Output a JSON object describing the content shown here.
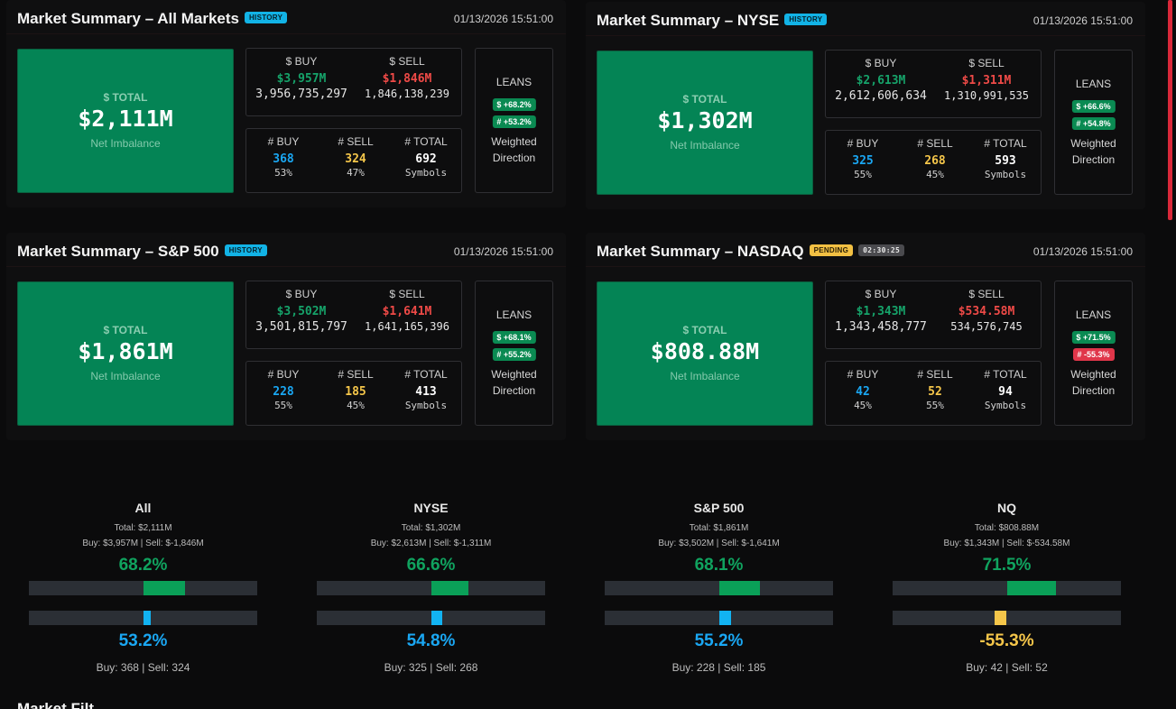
{
  "panels": [
    {
      "title": "Market Summary – All Markets",
      "badge": "HISTORY",
      "timer": "",
      "timestamp": "01/13/2026 15:51:00",
      "total_label": "$ TOTAL",
      "total_value": "$2,111M",
      "total_sub": "Net Imbalance",
      "buy_label": "$ BUY",
      "sell_label": "$ SELL",
      "buy_value": "$3,957M",
      "sell_value": "$1,846M",
      "buy_raw": "3,956,735,297",
      "sell_raw": "1,846,138,239",
      "nbuy_label": "# BUY",
      "nsell_label": "# SELL",
      "ntotal_label": "# TOTAL",
      "nbuy": "368",
      "nsell": "324",
      "ntotal": "692",
      "nbuy_pct": "53%",
      "nsell_pct": "47%",
      "ntotal_sub": "Symbols",
      "leans_title": "LEANS",
      "lean_dollar": "$ +68.2%",
      "lean_count": "# +53.2%",
      "lean_count_sign": "pos",
      "leans_foot1": "Weighted",
      "leans_foot2": "Direction"
    },
    {
      "title": "Market Summary – NYSE",
      "badge": "HISTORY",
      "timer": "",
      "timestamp": "01/13/2026 15:51:00",
      "total_label": "$ TOTAL",
      "total_value": "$1,302M",
      "total_sub": "Net Imbalance",
      "buy_label": "$ BUY",
      "sell_label": "$ SELL",
      "buy_value": "$2,613M",
      "sell_value": "$1,311M",
      "buy_raw": "2,612,606,634",
      "sell_raw": "1,310,991,535",
      "nbuy_label": "# BUY",
      "nsell_label": "# SELL",
      "ntotal_label": "# TOTAL",
      "nbuy": "325",
      "nsell": "268",
      "ntotal": "593",
      "nbuy_pct": "55%",
      "nsell_pct": "45%",
      "ntotal_sub": "Symbols",
      "leans_title": "LEANS",
      "lean_dollar": "$ +66.6%",
      "lean_count": "# +54.8%",
      "lean_count_sign": "pos",
      "leans_foot1": "Weighted",
      "leans_foot2": "Direction"
    },
    {
      "title": "Market Summary – S&P 500",
      "badge": "HISTORY",
      "timer": "",
      "timestamp": "01/13/2026 15:51:00",
      "total_label": "$ TOTAL",
      "total_value": "$1,861M",
      "total_sub": "Net Imbalance",
      "buy_label": "$ BUY",
      "sell_label": "$ SELL",
      "buy_value": "$3,502M",
      "sell_value": "$1,641M",
      "buy_raw": "3,501,815,797",
      "sell_raw": "1,641,165,396",
      "nbuy_label": "# BUY",
      "nsell_label": "# SELL",
      "ntotal_label": "# TOTAL",
      "nbuy": "228",
      "nsell": "185",
      "ntotal": "413",
      "nbuy_pct": "55%",
      "nsell_pct": "45%",
      "ntotal_sub": "Symbols",
      "leans_title": "LEANS",
      "lean_dollar": "$ +68.1%",
      "lean_count": "# +55.2%",
      "lean_count_sign": "pos",
      "leans_foot1": "Weighted",
      "leans_foot2": "Direction"
    },
    {
      "title": "Market Summary – NASDAQ",
      "badge": "PENDING",
      "timer": "02:30:25",
      "timestamp": "01/13/2026 15:51:00",
      "total_label": "$ TOTAL",
      "total_value": "$808.88M",
      "total_sub": "Net Imbalance",
      "buy_label": "$ BUY",
      "sell_label": "$ SELL",
      "buy_value": "$1,343M",
      "sell_value": "$534.58M",
      "buy_raw": "1,343,458,777",
      "sell_raw": "534,576,745",
      "nbuy_label": "# BUY",
      "nsell_label": "# SELL",
      "ntotal_label": "# TOTAL",
      "nbuy": "42",
      "nsell": "52",
      "ntotal": "94",
      "nbuy_pct": "45%",
      "nsell_pct": "55%",
      "ntotal_sub": "Symbols",
      "leans_title": "LEANS",
      "lean_dollar": "$ +71.5%",
      "lean_count": "# -55.3%",
      "lean_count_sign": "neg",
      "leans_foot1": "Weighted",
      "leans_foot2": "Direction"
    }
  ],
  "gauges": [
    {
      "title": "All",
      "total": "Total: $2,111M",
      "buy_sell": "Buy: $3,957M | Sell: $-1,846M",
      "dollar_pct": "68.2%",
      "dollar_lean": 0.682,
      "count_pct": "53.2%",
      "count_lean": 0.532,
      "count_color": "blue",
      "foot": "Buy: 368 | Sell: 324"
    },
    {
      "title": "NYSE",
      "total": "Total: $1,302M",
      "buy_sell": "Buy: $2,613M | Sell: $-1,311M",
      "dollar_pct": "66.6%",
      "dollar_lean": 0.666,
      "count_pct": "54.8%",
      "count_lean": 0.548,
      "count_color": "blue",
      "foot": "Buy: 325 | Sell: 268"
    },
    {
      "title": "S&P 500",
      "total": "Total: $1,861M",
      "buy_sell": "Buy: $3,502M | Sell: $-1,641M",
      "dollar_pct": "68.1%",
      "dollar_lean": 0.681,
      "count_pct": "55.2%",
      "count_lean": 0.552,
      "count_color": "blue",
      "foot": "Buy: 228 | Sell: 185"
    },
    {
      "title": "NQ",
      "total": "Total: $808.88M",
      "buy_sell": "Buy: $1,343M | Sell: $-534.58M",
      "dollar_pct": "71.5%",
      "dollar_lean": 0.715,
      "count_pct": "-55.3%",
      "count_lean": -0.553,
      "count_color": "yellow",
      "foot": "Buy: 42 | Sell: 52"
    }
  ],
  "footer_title": "Market Filt"
}
